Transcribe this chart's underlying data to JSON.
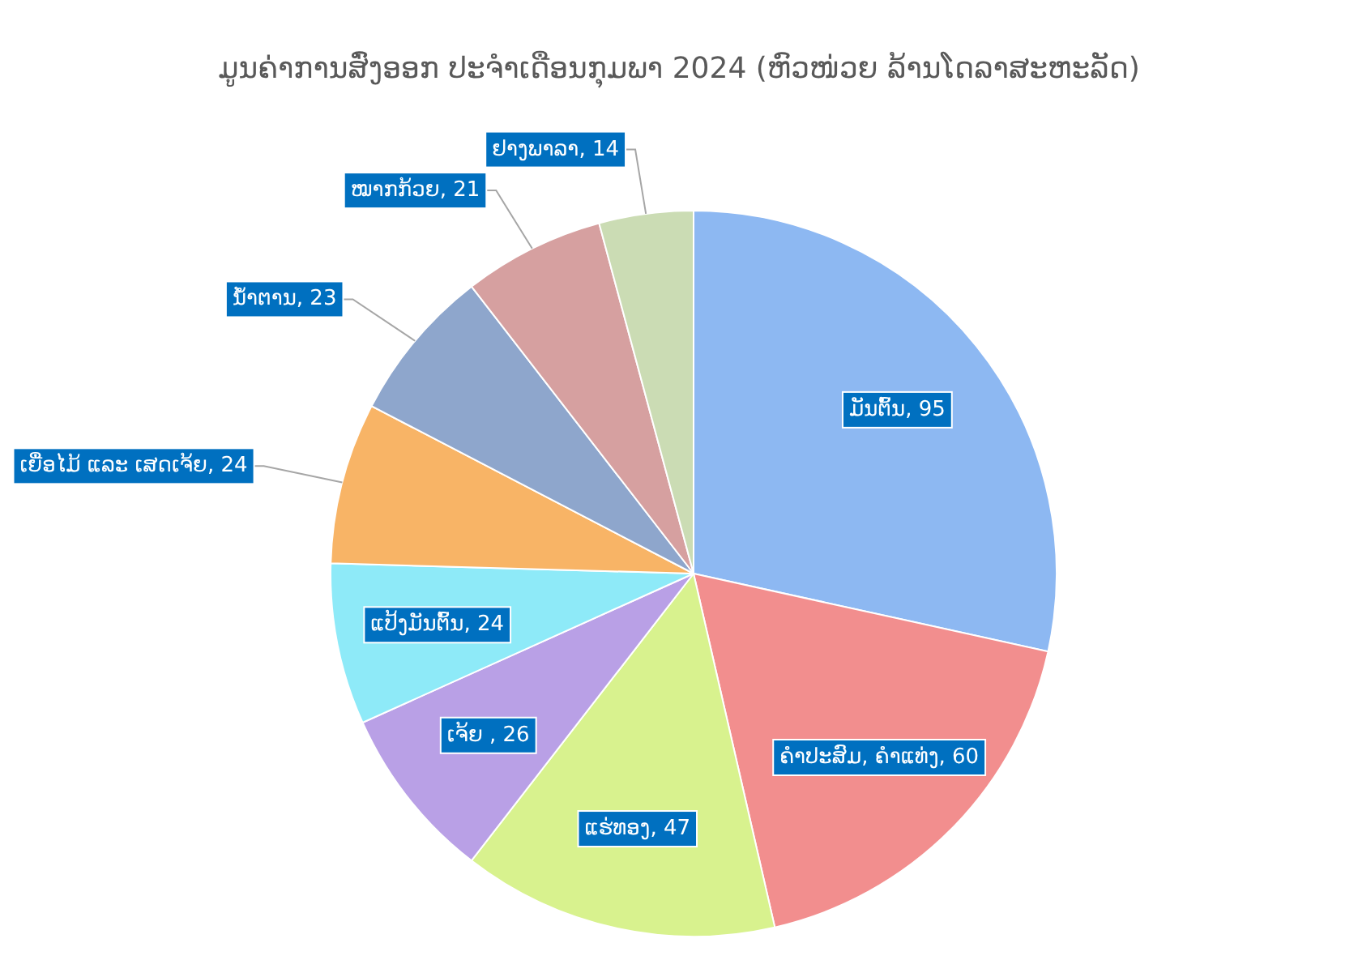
{
  "chart_data": {
    "type": "pie",
    "title": "ມູນຄ່າການສົ່ງອອກ ປະຈຳເດືອນກຸມພາ 2024 (ຫົວໜ່ວຍ ລ້ານໂດລາສະຫະລັດ)",
    "categories": [
      "ມັນຕົ້ນ",
      "ຄຳປະສົມ, ຄຳແທ່ງ",
      "ແຮ່ທອງ",
      "ເຈ້ຍ ",
      "ແປ້ງມັນຕົ້ນ",
      "ເຍື່ອໄມ້ ແລະ ເສດເຈ້ຍ",
      "ນ້ຳຕານ",
      "ໝາກກ້ວຍ",
      "ຢາງພາລາ"
    ],
    "values": [
      95,
      60,
      47,
      26,
      24,
      24,
      23,
      21,
      14
    ],
    "colors": [
      "#8db8f2",
      "#f28e8e",
      "#d8f28e",
      "#b9a0e6",
      "#8eeaf8",
      "#f8b466",
      "#8ea6cc",
      "#d6a0a0",
      "#cbdcb4"
    ],
    "value_labels": [
      ", 95",
      ", 60",
      ", 47",
      ", 26",
      ", 24",
      ", 24",
      ", 23",
      ", 21",
      ", 14"
    ]
  }
}
